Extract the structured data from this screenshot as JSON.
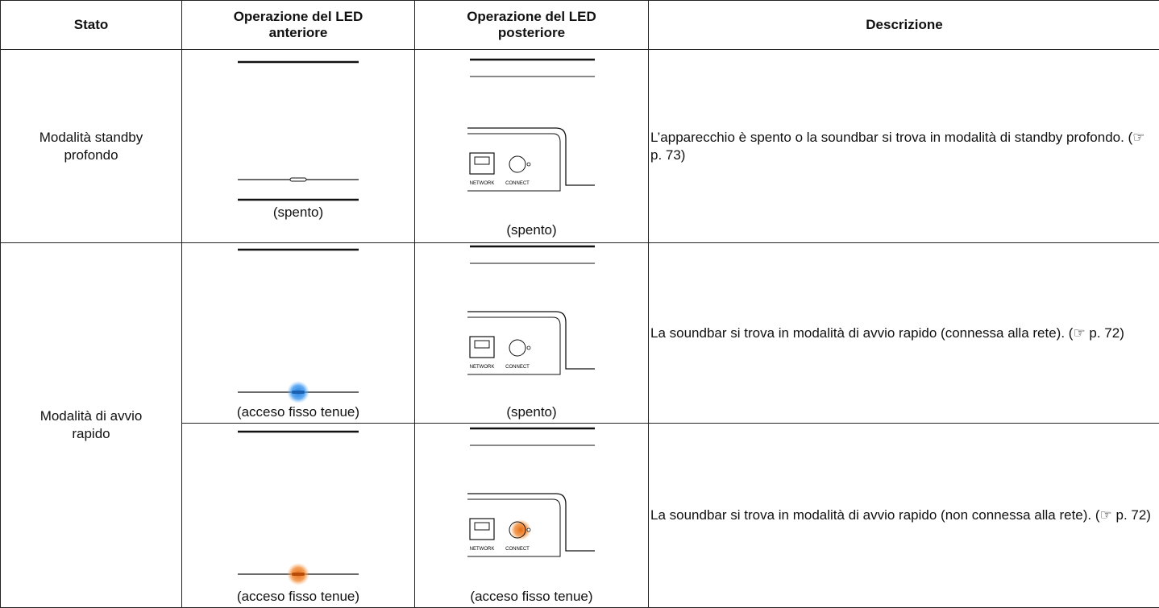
{
  "table": {
    "header": [
      "Stato",
      "Operazione del LED anteriore",
      "Operazione del LED posteriore",
      "Descrizione"
    ],
    "panel_labels": [
      "NETWORK",
      "CONNECT"
    ],
    "rows": [
      {
        "state": "Modalità standby profondo",
        "front": "(spento)",
        "rear": "(spento)",
        "description": "L’apparecchio è spento o la soundbar si trova in modalità di standby profondo.  (☞ p. 73)"
      },
      {
        "state": "Modalità di avvio rapido",
        "front": "(acceso fisso tenue)",
        "rear": "(spento)",
        "description": "La soundbar si trova in modalità di avvio rapido (connessa alla rete). (☞ p. 72)"
      },
      {
        "front": "(acceso fisso tenue)",
        "rear": "(acceso fisso tenue)",
        "description": "La soundbar si trova in modalità di avvio rapido (non connessa alla rete).  (☞ p. 72)"
      }
    ]
  }
}
